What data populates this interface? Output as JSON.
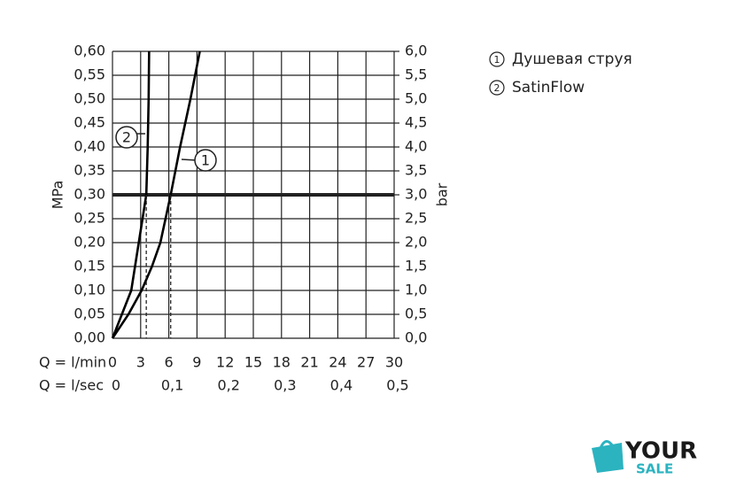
{
  "chart_data": {
    "type": "line",
    "ylabel": "MPa",
    "y2label": "bar",
    "xlabel": "Q = l/min",
    "x2label": "Q = l/sec",
    "xlim": [
      0,
      30
    ],
    "xticks": [
      0,
      3,
      6,
      9,
      12,
      15,
      18,
      21,
      24,
      27,
      30
    ],
    "x2lim": [
      0,
      0.5
    ],
    "x2ticks": [
      0,
      {
        "value": 0.1,
        "label": "0,1"
      },
      {
        "value": 0.2,
        "label": "0,2"
      },
      {
        "value": 0.3,
        "label": "0,3"
      },
      {
        "value": 0.4,
        "label": "0,4"
      },
      {
        "value": 0.5,
        "label": "0,5"
      }
    ],
    "ylim": [
      0,
      0.6
    ],
    "yticks": [
      {
        "value": 0,
        "label": "0,00"
      },
      {
        "value": 0.05,
        "label": "0,05"
      },
      {
        "value": 0.1,
        "label": "0,10"
      },
      {
        "value": 0.15,
        "label": "0,15"
      },
      {
        "value": 0.2,
        "label": "0,20"
      },
      {
        "value": 0.25,
        "label": "0,25"
      },
      {
        "value": 0.3,
        "label": "0,30"
      },
      {
        "value": 0.35,
        "label": "0,35"
      },
      {
        "value": 0.4,
        "label": "0,40"
      },
      {
        "value": 0.45,
        "label": "0,45"
      },
      {
        "value": 0.5,
        "label": "0,50"
      },
      {
        "value": 0.55,
        "label": "0,55"
      },
      {
        "value": 0.6,
        "label": "0,60"
      }
    ],
    "y2lim": [
      0,
      6
    ],
    "y2ticks": [
      {
        "value": 0,
        "label": "0,0"
      },
      {
        "value": 0.5,
        "label": "0,5"
      },
      {
        "value": 1,
        "label": "1,0"
      },
      {
        "value": 1.5,
        "label": "1,5"
      },
      {
        "value": 2,
        "label": "2,0"
      },
      {
        "value": 2.5,
        "label": "2,5"
      },
      {
        "value": 3,
        "label": "3,0"
      },
      {
        "value": 3.5,
        "label": "3,5"
      },
      {
        "value": 4,
        "label": "4,0"
      },
      {
        "value": 4.5,
        "label": "4,5"
      },
      {
        "value": 5,
        "label": "5,0"
      },
      {
        "value": 5.5,
        "label": "5,5"
      },
      {
        "value": 6,
        "label": "6,0"
      }
    ],
    "grid": true,
    "reference_line": 0.3,
    "series": [
      {
        "name": "Душевая струя",
        "label": "1",
        "color": "#000000",
        "x": [
          0,
          1.7,
          3.1,
          4.2,
          5.1,
          6.2,
          7.2,
          8.3,
          9.3
        ],
        "values": [
          0,
          0.05,
          0.1,
          0.15,
          0.2,
          0.3,
          0.4,
          0.5,
          0.6
        ]
      },
      {
        "name": "SatinFlow",
        "label": "2",
        "color": "#000000",
        "x": [
          0,
          1.0,
          2.0,
          2.8,
          3.6,
          3.75,
          3.85,
          3.9
        ],
        "values": [
          0,
          0.05,
          0.1,
          0.2,
          0.3,
          0.4,
          0.5,
          0.6
        ]
      }
    ]
  },
  "logo": {
    "line1": "YOUR",
    "line2": "SALE"
  }
}
